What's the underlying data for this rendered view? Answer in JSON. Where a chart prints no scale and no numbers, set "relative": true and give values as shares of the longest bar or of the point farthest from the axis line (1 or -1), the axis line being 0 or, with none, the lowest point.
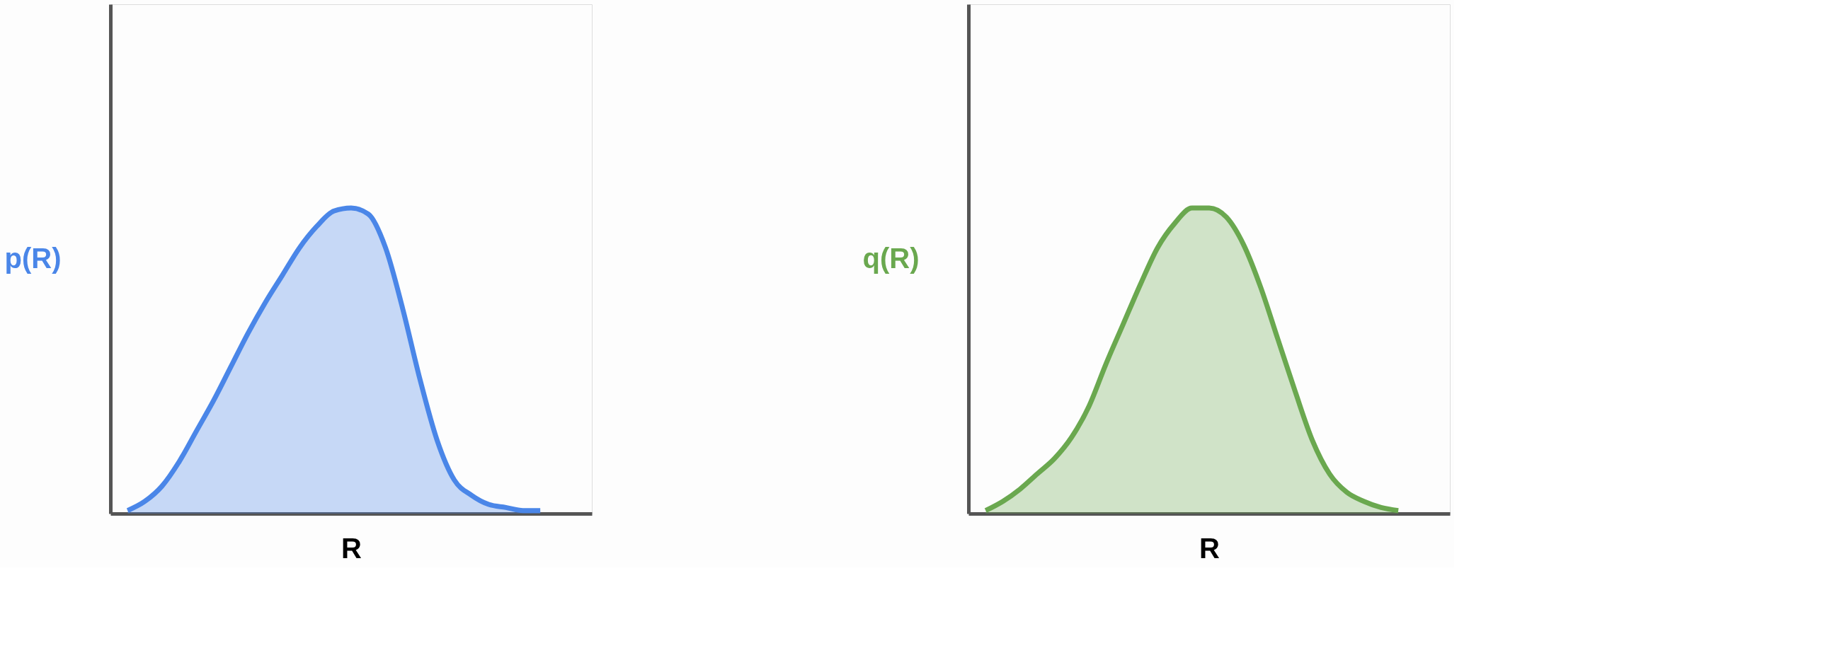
{
  "chart_data": [
    {
      "type": "area",
      "relative": true,
      "xlabel": "R",
      "ylabel": "p(R)",
      "tick_labels": false,
      "grid": false,
      "categories": [
        null,
        null,
        null,
        null,
        null,
        null,
        null,
        null,
        null,
        null,
        null,
        null,
        null,
        null,
        null,
        null,
        null,
        null,
        null,
        null,
        null,
        null,
        null,
        null,
        null
      ],
      "series": [
        {
          "color": "#4a86e8",
          "values": [
            0.01,
            0.04,
            0.09,
            0.17,
            0.27,
            0.37,
            0.48,
            0.59,
            0.69,
            0.78,
            0.87,
            0.94,
            0.99,
            1.0,
            0.98,
            0.87,
            0.67,
            0.44,
            0.24,
            0.11,
            0.06,
            0.03,
            0.02,
            0.01,
            0.01
          ]
        }
      ]
    },
    {
      "type": "area",
      "relative": true,
      "xlabel": "R",
      "ylabel": "q(R)",
      "tick_labels": false,
      "grid": false,
      "categories": [
        null,
        null,
        null,
        null,
        null,
        null,
        null,
        null,
        null,
        null,
        null,
        null,
        null,
        null,
        null,
        null,
        null,
        null,
        null,
        null,
        null,
        null,
        null,
        null,
        null
      ],
      "series": [
        {
          "color": "#6aa84f",
          "values": [
            0.01,
            0.04,
            0.08,
            0.13,
            0.18,
            0.25,
            0.35,
            0.49,
            0.62,
            0.75,
            0.87,
            0.95,
            1.0,
            1.0,
            0.97,
            0.88,
            0.74,
            0.57,
            0.4,
            0.24,
            0.13,
            0.07,
            0.04,
            0.02,
            0.01
          ]
        }
      ]
    }
  ]
}
